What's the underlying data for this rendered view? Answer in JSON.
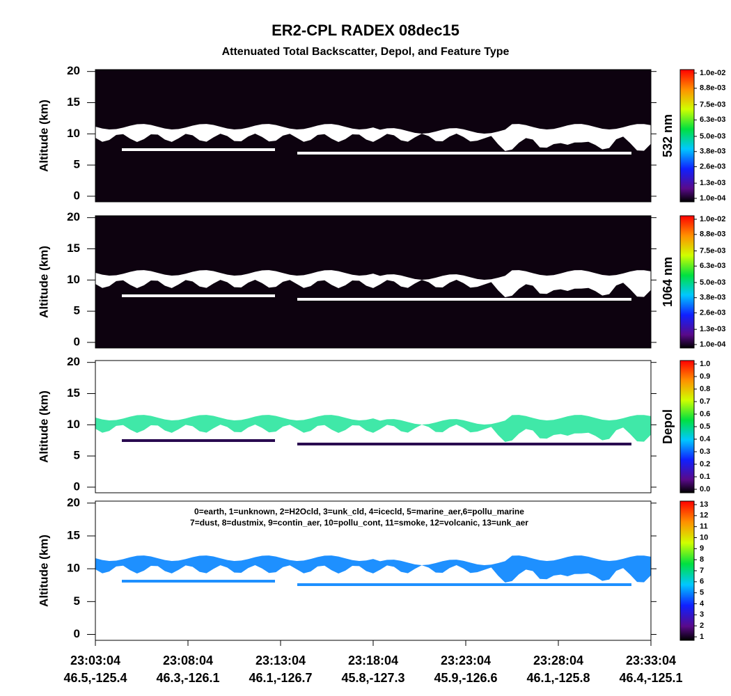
{
  "title": "ER2-CPL RADEX 08dec15",
  "subtitle": "Attenuated Total Backscatter, Depol, and Feature Type",
  "x_ticks": [
    {
      "time": "23:03:04",
      "location": "46.5,-125.4"
    },
    {
      "time": "23:08:04",
      "location": "46.3,-126.1"
    },
    {
      "time": "23:13:04",
      "location": "46.1,-126.7"
    },
    {
      "time": "23:18:04",
      "location": "45.8,-127.3"
    },
    {
      "time": "23:23:04",
      "location": "45.9,-126.6"
    },
    {
      "time": "23:28:04",
      "location": "46.1,-125.8"
    },
    {
      "time": "23:33:04",
      "location": "46.4,-125.1"
    }
  ],
  "chart_data": [
    {
      "type": "heatmap",
      "y_label": "Altitude (km)",
      "ylim": [
        -0.9,
        20.3
      ],
      "yticks": [
        0,
        5,
        10,
        15,
        20
      ],
      "colorbar_label": "532 nm",
      "clim": [
        0.0001,
        0.01
      ],
      "colorbar_ticks": [
        {
          "value": 0.0001,
          "label": "1.0e-04"
        },
        {
          "value": 0.0013,
          "label": "1.3e-03"
        },
        {
          "value": 0.0026,
          "label": "2.6e-03"
        },
        {
          "value": 0.0038,
          "label": "3.8e-03"
        },
        {
          "value": 0.005,
          "label": "5.0e-03"
        },
        {
          "value": 0.0063,
          "label": "6.3e-03"
        },
        {
          "value": 0.0075,
          "label": "7.5e-03"
        },
        {
          "value": 0.0088,
          "label": "8.8e-03"
        },
        {
          "value": 0.01,
          "label": "1.0e-02"
        }
      ]
    },
    {
      "type": "heatmap",
      "y_label": "Altitude (km)",
      "ylim": [
        -0.9,
        20.3
      ],
      "yticks": [
        0,
        5,
        10,
        15,
        20
      ],
      "colorbar_label": "1064 nm",
      "clim": [
        0.0001,
        0.01
      ],
      "colorbar_ticks": [
        {
          "value": 0.0001,
          "label": "1.0e-04"
        },
        {
          "value": 0.0013,
          "label": "1.3e-03"
        },
        {
          "value": 0.0026,
          "label": "2.6e-03"
        },
        {
          "value": 0.0038,
          "label": "3.8e-03"
        },
        {
          "value": 0.005,
          "label": "5.0e-03"
        },
        {
          "value": 0.0063,
          "label": "6.3e-03"
        },
        {
          "value": 0.0075,
          "label": "7.5e-03"
        },
        {
          "value": 0.0088,
          "label": "8.8e-03"
        },
        {
          "value": 0.01,
          "label": "1.0e-02"
        }
      ]
    },
    {
      "type": "heatmap",
      "y_label": "Altitude (km)",
      "ylim": [
        -0.9,
        20.3
      ],
      "yticks": [
        0,
        5,
        10,
        15,
        20
      ],
      "colorbar_label": "Depol",
      "clim": [
        0,
        1
      ],
      "colorbar_ticks": [
        {
          "value": 0,
          "label": "0.0"
        },
        0.1,
        0.2,
        0.3,
        0.4,
        0.5,
        0.6,
        0.7,
        0.8,
        0.9,
        {
          "value": 1,
          "label": "1.0"
        }
      ]
    },
    {
      "type": "heatmap",
      "y_label": "Altitude (km)",
      "ylim": [
        -0.9,
        20.3
      ],
      "yticks": [
        0,
        5,
        10,
        15,
        20
      ],
      "clim": [
        1,
        13
      ],
      "colorbar_ticks": [
        1,
        2,
        3,
        4,
        5,
        6,
        7,
        8,
        9,
        10,
        11,
        12,
        13
      ],
      "legend_text": [
        "0=earth, 1=unknown, 2=H2Ocld, 3=unk_cld, 4=icecld, 5=marine_aer,6=pollu_marine",
        "7=dust, 8=dustmix, 9=contin_aer, 10=pollu_cont, 11=smoke, 12=volcanic, 13=unk_aer"
      ]
    }
  ]
}
